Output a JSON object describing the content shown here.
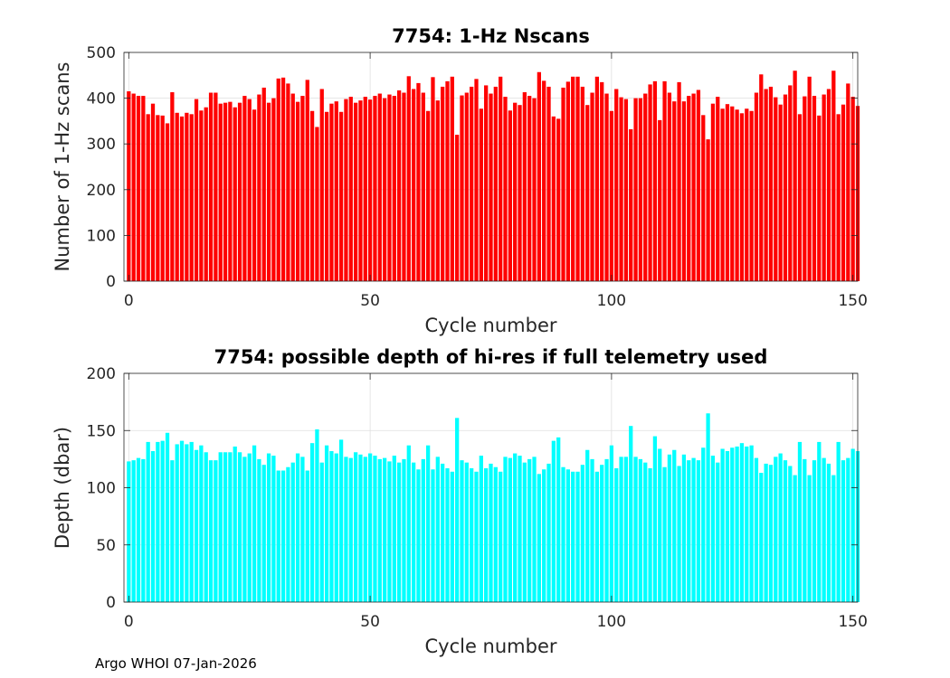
{
  "footer": "Argo WHOI 07-Jan-2026",
  "chart_data": [
    {
      "type": "bar",
      "title": "7754: 1-Hz Nscans",
      "xlabel": "Cycle number",
      "ylabel": "Number of 1-Hz scans",
      "xlim": [
        -1,
        151
      ],
      "ylim": [
        0,
        500
      ],
      "xticks": [
        0,
        50,
        100,
        150
      ],
      "yticks": [
        0,
        100,
        200,
        300,
        400,
        500
      ],
      "grid": true,
      "color": "#ff0000",
      "x_start": 0,
      "values": [
        415,
        410,
        405,
        405,
        365,
        388,
        363,
        362,
        345,
        413,
        368,
        360,
        368,
        365,
        398,
        373,
        380,
        412,
        412,
        388,
        390,
        392,
        380,
        390,
        405,
        398,
        375,
        408,
        423,
        390,
        400,
        443,
        445,
        432,
        410,
        392,
        405,
        440,
        372,
        337,
        420,
        370,
        388,
        393,
        370,
        398,
        403,
        390,
        395,
        403,
        397,
        405,
        410,
        400,
        408,
        405,
        417,
        412,
        448,
        420,
        433,
        412,
        372,
        446,
        395,
        425,
        437,
        447,
        320,
        406,
        412,
        425,
        442,
        377,
        428,
        410,
        425,
        447,
        403,
        373,
        390,
        385,
        413,
        405,
        400,
        457,
        438,
        425,
        360,
        355,
        423,
        436,
        447,
        447,
        425,
        385,
        412,
        447,
        435,
        410,
        372,
        420,
        402,
        398,
        332,
        400,
        400,
        410,
        430,
        437,
        352,
        437,
        412,
        393,
        435,
        393,
        405,
        410,
        418,
        363,
        310,
        388,
        403,
        377,
        387,
        382,
        375,
        367,
        377,
        372,
        412,
        452,
        420,
        425,
        402,
        386,
        408,
        428,
        460,
        365,
        404,
        447,
        405,
        362,
        408,
        420,
        460,
        365,
        386,
        432,
        403,
        383
      ]
    },
    {
      "type": "bar",
      "title": "7754: possible depth of hi-res if full telemetry used",
      "xlabel": "Cycle number",
      "ylabel": "Depth (dbar)",
      "xlim": [
        -1,
        151
      ],
      "ylim": [
        0,
        200
      ],
      "xticks": [
        0,
        50,
        100,
        150
      ],
      "yticks": [
        0,
        50,
        100,
        150,
        200
      ],
      "grid": true,
      "color": "#00ffff",
      "x_start": 0,
      "values": [
        123,
        124,
        126,
        125,
        140,
        132,
        140,
        141,
        148,
        124,
        138,
        141,
        138,
        140,
        133,
        137,
        131,
        124,
        124,
        131,
        131,
        131,
        136,
        131,
        127,
        130,
        137,
        125,
        120,
        130,
        128,
        115,
        115,
        118,
        122,
        130,
        127,
        115,
        139,
        151,
        122,
        137,
        132,
        130,
        142,
        127,
        126,
        131,
        129,
        127,
        130,
        128,
        125,
        126,
        123,
        128,
        122,
        125,
        137,
        122,
        116,
        125,
        137,
        116,
        127,
        121,
        117,
        114,
        161,
        124,
        122,
        117,
        114,
        128,
        117,
        121,
        118,
        114,
        127,
        126,
        130,
        128,
        122,
        125,
        127,
        112,
        116,
        121,
        141,
        144,
        118,
        116,
        114,
        114,
        120,
        133,
        125,
        114,
        120,
        125,
        137,
        117,
        127,
        127,
        154,
        127,
        125,
        122,
        117,
        145,
        134,
        118,
        129,
        133,
        119,
        129,
        124,
        126,
        124,
        135,
        165,
        128,
        122,
        134,
        132,
        135,
        136,
        139,
        136,
        137,
        126,
        113,
        121,
        120,
        127,
        130,
        124,
        119,
        111,
        140,
        125,
        111,
        124,
        140,
        126,
        121,
        111,
        140,
        124,
        126,
        134,
        132
      ]
    }
  ]
}
